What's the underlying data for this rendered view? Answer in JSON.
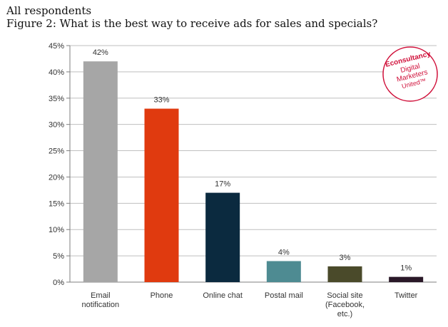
{
  "header": {
    "respondents": "All respondents",
    "title": "Figure 2: What is the best way to receive ads for sales and specials?"
  },
  "logo": {
    "lines": [
      "Econsultancy",
      "Digital",
      "Marketers",
      "United™"
    ],
    "color": "#d0103a"
  },
  "chart_data": {
    "type": "bar",
    "categories": [
      [
        "Email",
        "notification"
      ],
      [
        "Phone"
      ],
      [
        "Online chat"
      ],
      [
        "Postal mail"
      ],
      [
        "Social site",
        "(Facebook,",
        "etc.)"
      ],
      [
        "Twitter"
      ]
    ],
    "values": [
      42,
      33,
      17,
      4,
      3,
      1
    ],
    "value_labels": [
      "42%",
      "33%",
      "17%",
      "4%",
      "3%",
      "1%"
    ],
    "colors": [
      "#a6a6a6",
      "#e03a0f",
      "#0b2a3f",
      "#4e8b92",
      "#4a4a2a",
      "#2a1828"
    ],
    "y_ticks": [
      "0%",
      "5%",
      "10%",
      "15%",
      "20%",
      "25%",
      "30%",
      "35%",
      "40%",
      "45%"
    ],
    "ylim": [
      0,
      45
    ],
    "grid": true
  }
}
